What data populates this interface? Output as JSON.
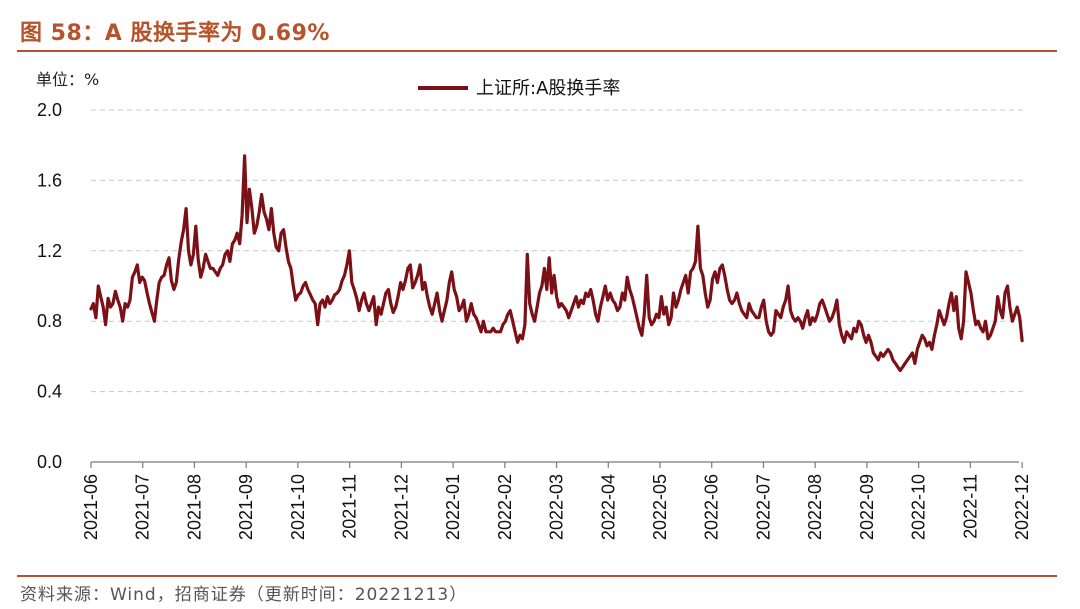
{
  "header": {
    "title": "图 58：A 股换手率为 0.69%"
  },
  "footer": {
    "source": "资料来源：Wind，招商证券（更新时间：20221213）"
  },
  "chart_data": {
    "type": "line",
    "unit_label": "单位：%",
    "ylim": [
      0.0,
      2.0
    ],
    "y_ticks": [
      "0.0",
      "0.4",
      "0.8",
      "1.2",
      "1.6",
      "2.0"
    ],
    "x_ticks": [
      "2021-06",
      "2021-07",
      "2021-08",
      "2021-09",
      "2021-10",
      "2021-11",
      "2021-12",
      "2022-01",
      "2022-02",
      "2022-03",
      "2022-04",
      "2022-05",
      "2022-06",
      "2022-07",
      "2022-08",
      "2022-09",
      "2022-10",
      "2022-11",
      "2022-12"
    ],
    "grid": true,
    "legend_position": "top-center",
    "line_color": "#7b1016",
    "series": [
      {
        "name": "上证所:A股换手率",
        "x_start": 0,
        "x_end": 18,
        "values": [
          0.87,
          0.9,
          0.82,
          1.0,
          0.94,
          0.88,
          0.78,
          0.93,
          0.88,
          0.9,
          0.97,
          0.92,
          0.88,
          0.8,
          0.9,
          0.88,
          0.92,
          1.05,
          1.08,
          1.12,
          1.02,
          1.05,
          1.03,
          0.96,
          0.9,
          0.85,
          0.8,
          0.92,
          1.02,
          1.05,
          1.06,
          1.12,
          1.16,
          1.03,
          0.98,
          1.02,
          1.15,
          1.25,
          1.32,
          1.44,
          1.2,
          1.12,
          1.18,
          1.34,
          1.15,
          1.05,
          1.1,
          1.18,
          1.14,
          1.1,
          1.1,
          1.08,
          1.06,
          1.1,
          1.12,
          1.18,
          1.2,
          1.14,
          1.24,
          1.26,
          1.3,
          1.24,
          1.4,
          1.74,
          1.36,
          1.55,
          1.44,
          1.3,
          1.34,
          1.42,
          1.52,
          1.42,
          1.38,
          1.32,
          1.44,
          1.3,
          1.22,
          1.2,
          1.3,
          1.32,
          1.22,
          1.14,
          1.1,
          1.0,
          0.92,
          0.95,
          0.96,
          1.0,
          1.02,
          0.98,
          0.95,
          0.92,
          0.9,
          0.78,
          0.9,
          0.92,
          0.88,
          0.94,
          0.9,
          0.92,
          0.95,
          0.96,
          0.98,
          1.03,
          1.06,
          1.12,
          1.2,
          1.02,
          0.98,
          0.93,
          0.86,
          0.92,
          0.96,
          0.9,
          0.86,
          0.9,
          0.94,
          0.78,
          0.88,
          0.84,
          0.9,
          0.96,
          0.98,
          0.9,
          0.85,
          0.88,
          0.94,
          1.02,
          0.98,
          1.03,
          1.1,
          1.12,
          0.99,
          1.02,
          1.06,
          1.12,
          0.98,
          1.02,
          0.94,
          0.88,
          0.84,
          0.9,
          0.96,
          0.86,
          0.8,
          0.86,
          0.92,
          1.02,
          1.08,
          0.98,
          0.94,
          0.86,
          0.88,
          0.92,
          0.8,
          0.84,
          0.9,
          0.84,
          0.82,
          0.78,
          0.74,
          0.8,
          0.74,
          0.74,
          0.74,
          0.76,
          0.74,
          0.74,
          0.74,
          0.78,
          0.8,
          0.84,
          0.86,
          0.8,
          0.74,
          0.68,
          0.72,
          0.7,
          0.78,
          1.18,
          0.9,
          0.84,
          0.8,
          0.88,
          0.96,
          1.0,
          1.1,
          0.98,
          1.16,
          0.96,
          1.06,
          0.94,
          0.88,
          0.9,
          0.88,
          0.86,
          0.82,
          0.86,
          0.9,
          0.94,
          0.88,
          0.92,
          0.9,
          0.96,
          0.94,
          0.98,
          0.92,
          0.84,
          0.8,
          0.88,
          0.94,
          1.0,
          0.92,
          0.96,
          0.92,
          0.9,
          0.86,
          0.88,
          0.96,
          0.92,
          1.05,
          0.98,
          0.94,
          0.88,
          0.82,
          0.76,
          0.72,
          0.84,
          1.06,
          0.82,
          0.78,
          0.8,
          0.84,
          0.82,
          0.94,
          0.84,
          0.88,
          0.78,
          0.82,
          0.96,
          0.88,
          0.92,
          0.98,
          1.02,
          1.06,
          0.96,
          1.08,
          1.1,
          1.14,
          1.34,
          1.1,
          1.06,
          0.96,
          0.88,
          0.92,
          1.04,
          1.08,
          1.02,
          1.1,
          1.12,
          1.06,
          0.98,
          0.92,
          0.9,
          0.92,
          0.96,
          0.9,
          0.86,
          0.84,
          0.82,
          0.9,
          0.86,
          0.84,
          0.82,
          0.82,
          0.88,
          0.92,
          0.8,
          0.74,
          0.72,
          0.74,
          0.86,
          0.84,
          0.82,
          0.88,
          0.92,
          1.0,
          0.86,
          0.82,
          0.8,
          0.82,
          0.8,
          0.76,
          0.82,
          0.86,
          0.78,
          0.82,
          0.8,
          0.84,
          0.9,
          0.92,
          0.88,
          0.84,
          0.8,
          0.82,
          0.86,
          0.92,
          0.78,
          0.72,
          0.68,
          0.74,
          0.72,
          0.7,
          0.76,
          0.74,
          0.8,
          0.78,
          0.72,
          0.68,
          0.72,
          0.68,
          0.62,
          0.6,
          0.58,
          0.62,
          0.6,
          0.62,
          0.64,
          0.62,
          0.58,
          0.56,
          0.54,
          0.52,
          0.54,
          0.56,
          0.58,
          0.6,
          0.62,
          0.56,
          0.64,
          0.68,
          0.72,
          0.7,
          0.66,
          0.68,
          0.64,
          0.72,
          0.78,
          0.86,
          0.82,
          0.78,
          0.82,
          0.9,
          0.96,
          0.86,
          0.94,
          0.76,
          0.7,
          0.8,
          1.08,
          1.02,
          0.96,
          0.86,
          0.78,
          0.8,
          0.76,
          0.74,
          0.8,
          0.7,
          0.72,
          0.76,
          0.8,
          0.94,
          0.86,
          0.82,
          0.96,
          1.0,
          0.88,
          0.8,
          0.84,
          0.88,
          0.82,
          0.69
        ]
      }
    ]
  }
}
